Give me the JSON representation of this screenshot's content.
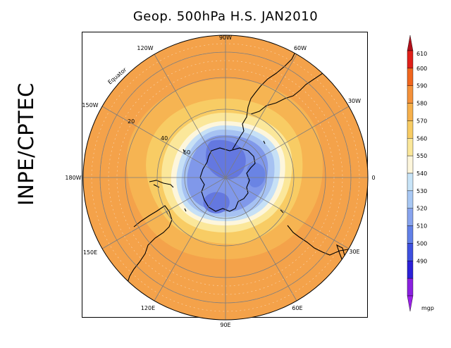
{
  "title": "Geop. 500hPa H.S. JAN2010",
  "logo_text": "INPE/CPTEC",
  "map": {
    "longitude_labels": [
      "90W",
      "60W",
      "30W",
      "0",
      "30E",
      "60E",
      "90E",
      "120E",
      "150E",
      "180W",
      "150W",
      "120W"
    ],
    "latitude_labels": [
      "Equator",
      "20",
      "40",
      "60"
    ],
    "colors": {
      "ocean_ring": "#f2a54a",
      "coastline": "#000000",
      "grid": "#7a7a7a"
    }
  },
  "colorbar": {
    "levels": [
      "610",
      "600",
      "590",
      "580",
      "570",
      "560",
      "550",
      "540",
      "530",
      "520",
      "510",
      "500",
      "490"
    ],
    "unit": "mgp",
    "colors": [
      "#e0201a",
      "#f0661e",
      "#f4913a",
      "#f6b04c",
      "#f8cc64",
      "#fbe79a",
      "#fdf6dc",
      "#c8e4f8",
      "#a8c8f4",
      "#88a4ee",
      "#6280e8",
      "#3e50e0",
      "#2c20d8",
      "#8a20e0"
    ],
    "top_arrow_color": "#b0101a",
    "bottom_arrow_color": "#9a20e8"
  }
}
